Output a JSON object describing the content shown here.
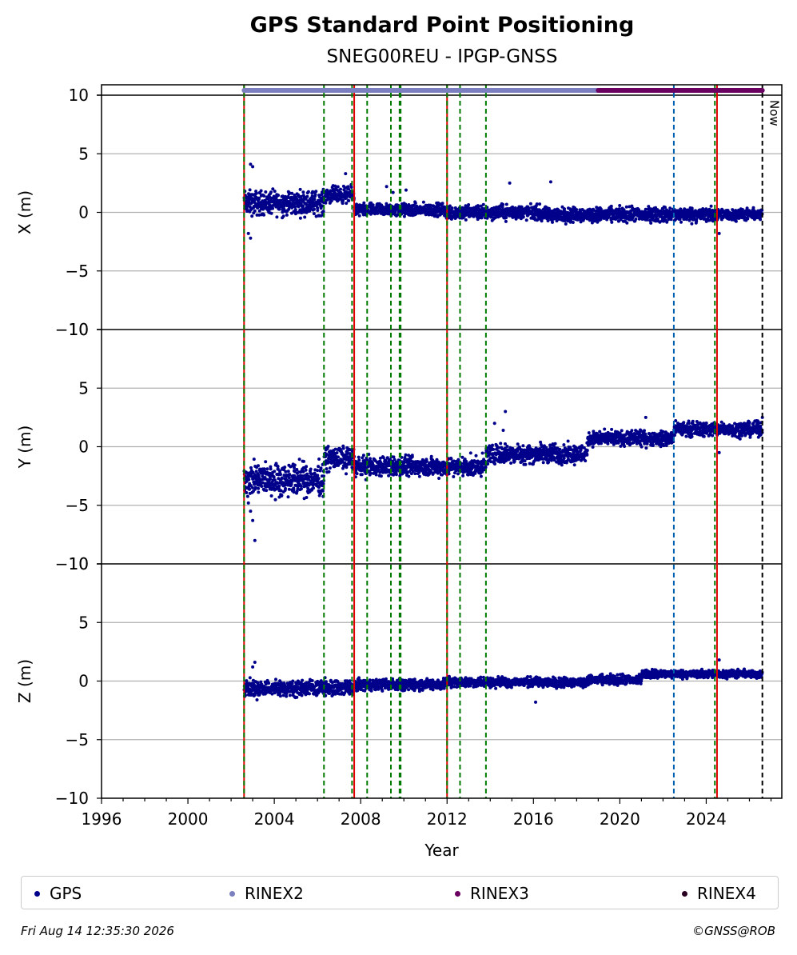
{
  "chart_data": {
    "type": "scatter",
    "title": "GPS Standard Point Positioning",
    "subtitle": "SNEG00REU - IPGP-GNSS",
    "xlabel": "Year",
    "xlim": [
      1996,
      2027.5
    ],
    "x_ticks": [
      "1996",
      "2000",
      "2004",
      "2008",
      "2012",
      "2016",
      "2020",
      "2024"
    ],
    "y_ticks": [
      "10",
      "5",
      "0",
      "−5",
      "−10"
    ],
    "panels": [
      {
        "ylabel": "X (m)",
        "ylim": [
          -10,
          10
        ],
        "segments": [
          {
            "x0": 2002.6,
            "x1": 2006.3,
            "mean": 0.8,
            "spread": 1.5
          },
          {
            "x0": 2006.3,
            "x1": 2007.7,
            "mean": 1.5,
            "spread": 1.0
          },
          {
            "x0": 2007.7,
            "x1": 2011.9,
            "mean": 0.2,
            "spread": 0.8
          },
          {
            "x0": 2011.9,
            "x1": 2016.3,
            "mean": 0.0,
            "spread": 0.9
          },
          {
            "x0": 2016.3,
            "x1": 2024.5,
            "mean": -0.2,
            "spread": 0.9
          },
          {
            "x0": 2024.5,
            "x1": 2026.6,
            "mean": -0.2,
            "spread": 0.7
          }
        ],
        "outliers": [
          [
            2002.9,
            4.1
          ],
          [
            2003.0,
            3.9
          ],
          [
            2002.9,
            -2.2
          ],
          [
            2002.8,
            -1.8
          ],
          [
            2009.2,
            2.2
          ],
          [
            2009.5,
            1.7
          ],
          [
            2010.1,
            1.9
          ],
          [
            2014.9,
            2.5
          ],
          [
            2016.8,
            2.6
          ],
          [
            2024.6,
            -1.8
          ],
          [
            2007.3,
            3.3
          ]
        ]
      },
      {
        "ylabel": "Y (m)",
        "ylim": [
          -10,
          10
        ],
        "segments": [
          {
            "x0": 2002.6,
            "x1": 2006.3,
            "mean": -2.8,
            "spread": 2.0
          },
          {
            "x0": 2006.3,
            "x1": 2007.7,
            "mean": -1.0,
            "spread": 1.4
          },
          {
            "x0": 2007.7,
            "x1": 2013.8,
            "mean": -1.7,
            "spread": 1.2
          },
          {
            "x0": 2013.8,
            "x1": 2018.5,
            "mean": -0.6,
            "spread": 1.2
          },
          {
            "x0": 2018.5,
            "x1": 2022.5,
            "mean": 0.7,
            "spread": 0.9
          },
          {
            "x0": 2022.5,
            "x1": 2026.6,
            "mean": 1.5,
            "spread": 0.9
          }
        ],
        "outliers": [
          [
            2002.9,
            -5.5
          ],
          [
            2003.0,
            -6.3
          ],
          [
            2003.1,
            -8.0
          ],
          [
            2002.8,
            -4.8
          ],
          [
            2014.7,
            3.0
          ],
          [
            2014.2,
            2.0
          ],
          [
            2014.6,
            1.4
          ],
          [
            2021.2,
            2.5
          ],
          [
            2024.6,
            -0.5
          ],
          [
            2026.6,
            2.5
          ]
        ]
      },
      {
        "ylabel": "Z (m)",
        "ylim": [
          -10,
          10
        ],
        "segments": [
          {
            "x0": 2002.6,
            "x1": 2007.7,
            "mean": -0.6,
            "spread": 1.0
          },
          {
            "x0": 2007.7,
            "x1": 2011.9,
            "mean": -0.3,
            "spread": 0.7
          },
          {
            "x0": 2011.9,
            "x1": 2018.5,
            "mean": -0.1,
            "spread": 0.6
          },
          {
            "x0": 2018.5,
            "x1": 2021.0,
            "mean": 0.1,
            "spread": 0.6
          },
          {
            "x0": 2021.0,
            "x1": 2026.6,
            "mean": 0.6,
            "spread": 0.5
          }
        ],
        "outliers": [
          [
            2003.1,
            1.6
          ],
          [
            2003.0,
            1.2
          ],
          [
            2003.2,
            -1.6
          ],
          [
            2016.1,
            -1.8
          ],
          [
            2024.6,
            1.8
          ],
          [
            2021.5,
            1.0
          ]
        ]
      }
    ],
    "events": [
      {
        "x": 2002.6,
        "style": "red-solid"
      },
      {
        "x": 2002.6,
        "style": "green-dashed"
      },
      {
        "x": 2006.3,
        "style": "green-dashed"
      },
      {
        "x": 2007.6,
        "style": "green-dashed"
      },
      {
        "x": 2007.7,
        "style": "red-solid"
      },
      {
        "x": 2008.3,
        "style": "green-dashed"
      },
      {
        "x": 2009.4,
        "style": "green-dashed"
      },
      {
        "x": 2009.8,
        "style": "green-dashed"
      },
      {
        "x": 2009.85,
        "style": "green-dashed"
      },
      {
        "x": 2012.0,
        "style": "red-solid"
      },
      {
        "x": 2012.0,
        "style": "green-dashed"
      },
      {
        "x": 2012.6,
        "style": "green-dashed"
      },
      {
        "x": 2013.8,
        "style": "green-dashed"
      },
      {
        "x": 2022.5,
        "style": "blue-dashed"
      },
      {
        "x": 2024.5,
        "style": "red-solid"
      },
      {
        "x": 2024.4,
        "style": "green-dashed"
      },
      {
        "x": 2026.6,
        "style": "black-dashed"
      }
    ],
    "now_label": "Now",
    "now_x": 2026.6,
    "availability": [
      {
        "name": "RINEX2",
        "x0": 2002.6,
        "x1": 2019.0,
        "color": "#7b7fbf"
      },
      {
        "name": "RINEX3",
        "x0": 2019.0,
        "x1": 2026.6,
        "color": "#6a0060"
      }
    ],
    "legend": [
      {
        "label": "GPS",
        "color": "#00008b"
      },
      {
        "label": "RINEX2",
        "color": "#7b7fbf"
      },
      {
        "label": "RINEX3",
        "color": "#6a0060"
      },
      {
        "label": "RINEX4",
        "color": "#2a0020"
      }
    ],
    "legend_position": "bottom",
    "grid": "horizontal"
  },
  "footer": {
    "date": "Fri Aug 14 12:35:30 2026",
    "copyright": "©GNSS@ROB"
  }
}
